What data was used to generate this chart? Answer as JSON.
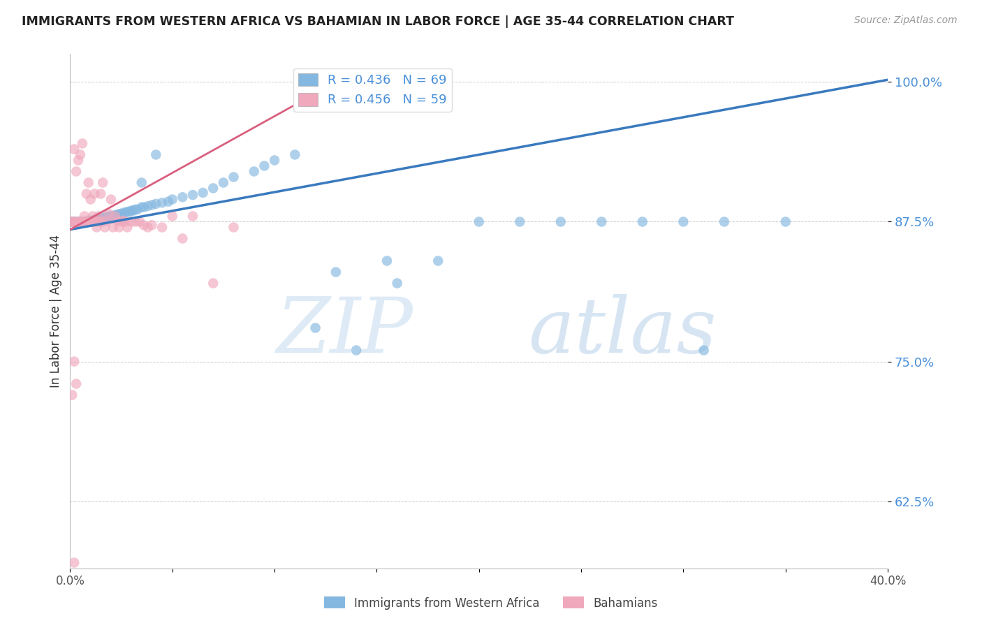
{
  "title": "IMMIGRANTS FROM WESTERN AFRICA VS BAHAMIAN IN LABOR FORCE | AGE 35-44 CORRELATION CHART",
  "source": "Source: ZipAtlas.com",
  "ylabel": "In Labor Force | Age 35-44",
  "ytick_values": [
    1.0,
    0.875,
    0.75,
    0.625
  ],
  "xmin": 0.0,
  "xmax": 0.4,
  "ymin": 0.565,
  "ymax": 1.025,
  "blue_color": "#85b8e0",
  "pink_color": "#f0a8bc",
  "blue_line_color": "#3a7abf",
  "pink_line_color": "#d95f7f",
  "legend_blue_R": "R = 0.436",
  "legend_blue_N": "N = 69",
  "legend_pink_R": "R = 0.456",
  "legend_pink_N": "N = 59",
  "watermark_zip": "ZIP",
  "watermark_atlas": "atlas",
  "blue_scatter_x": [
    0.001,
    0.002,
    0.002,
    0.003,
    0.004,
    0.005,
    0.006,
    0.007,
    0.008,
    0.009,
    0.01,
    0.011,
    0.012,
    0.013,
    0.014,
    0.015,
    0.016,
    0.017,
    0.018,
    0.019,
    0.02,
    0.021,
    0.022,
    0.023,
    0.024,
    0.025,
    0.026,
    0.027,
    0.028,
    0.029,
    0.03,
    0.031,
    0.032,
    0.033,
    0.035,
    0.036,
    0.038,
    0.04,
    0.042,
    0.045,
    0.048,
    0.05,
    0.055,
    0.06,
    0.065,
    0.07,
    0.075,
    0.08,
    0.09,
    0.095,
    0.1,
    0.11,
    0.12,
    0.13,
    0.14,
    0.16,
    0.18,
    0.2,
    0.22,
    0.24,
    0.26,
    0.28,
    0.3,
    0.32,
    0.35,
    0.035,
    0.042,
    0.31,
    0.155
  ],
  "blue_scatter_y": [
    0.875,
    0.875,
    0.875,
    0.875,
    0.875,
    0.875,
    0.875,
    0.875,
    0.875,
    0.876,
    0.876,
    0.876,
    0.877,
    0.877,
    0.878,
    0.878,
    0.878,
    0.879,
    0.879,
    0.88,
    0.88,
    0.88,
    0.881,
    0.881,
    0.882,
    0.882,
    0.883,
    0.883,
    0.884,
    0.884,
    0.885,
    0.885,
    0.886,
    0.886,
    0.888,
    0.888,
    0.889,
    0.89,
    0.891,
    0.892,
    0.893,
    0.895,
    0.897,
    0.899,
    0.901,
    0.905,
    0.91,
    0.915,
    0.92,
    0.925,
    0.93,
    0.935,
    0.78,
    0.83,
    0.76,
    0.82,
    0.84,
    0.875,
    0.875,
    0.875,
    0.875,
    0.875,
    0.875,
    0.875,
    0.875,
    0.91,
    0.935,
    0.76,
    0.84
  ],
  "blue_line_x0": 0.0,
  "blue_line_y0": 0.868,
  "blue_line_x1": 0.4,
  "blue_line_y1": 1.002,
  "pink_line_x0": 0.0,
  "pink_line_y0": 0.868,
  "pink_line_x1": 0.14,
  "pink_line_y1": 1.01,
  "pink_scatter_x": [
    0.001,
    0.001,
    0.002,
    0.002,
    0.003,
    0.003,
    0.004,
    0.004,
    0.005,
    0.005,
    0.006,
    0.006,
    0.007,
    0.007,
    0.008,
    0.008,
    0.009,
    0.009,
    0.01,
    0.01,
    0.011,
    0.011,
    0.012,
    0.012,
    0.013,
    0.013,
    0.014,
    0.015,
    0.015,
    0.016,
    0.016,
    0.017,
    0.018,
    0.019,
    0.02,
    0.021,
    0.022,
    0.023,
    0.024,
    0.025,
    0.026,
    0.027,
    0.028,
    0.03,
    0.032,
    0.034,
    0.036,
    0.038,
    0.04,
    0.045,
    0.05,
    0.055,
    0.06,
    0.07,
    0.08,
    0.002,
    0.003,
    0.001,
    0.002
  ],
  "pink_scatter_y": [
    0.875,
    0.875,
    0.94,
    0.875,
    0.92,
    0.875,
    0.93,
    0.875,
    0.935,
    0.875,
    0.945,
    0.875,
    0.88,
    0.875,
    0.9,
    0.875,
    0.91,
    0.875,
    0.895,
    0.875,
    0.88,
    0.875,
    0.9,
    0.875,
    0.87,
    0.875,
    0.88,
    0.9,
    0.875,
    0.91,
    0.875,
    0.87,
    0.876,
    0.882,
    0.895,
    0.87,
    0.88,
    0.876,
    0.87,
    0.875,
    0.876,
    0.875,
    0.87,
    0.875,
    0.875,
    0.875,
    0.872,
    0.87,
    0.872,
    0.87,
    0.88,
    0.86,
    0.88,
    0.82,
    0.87,
    0.75,
    0.73,
    0.72,
    0.57
  ]
}
